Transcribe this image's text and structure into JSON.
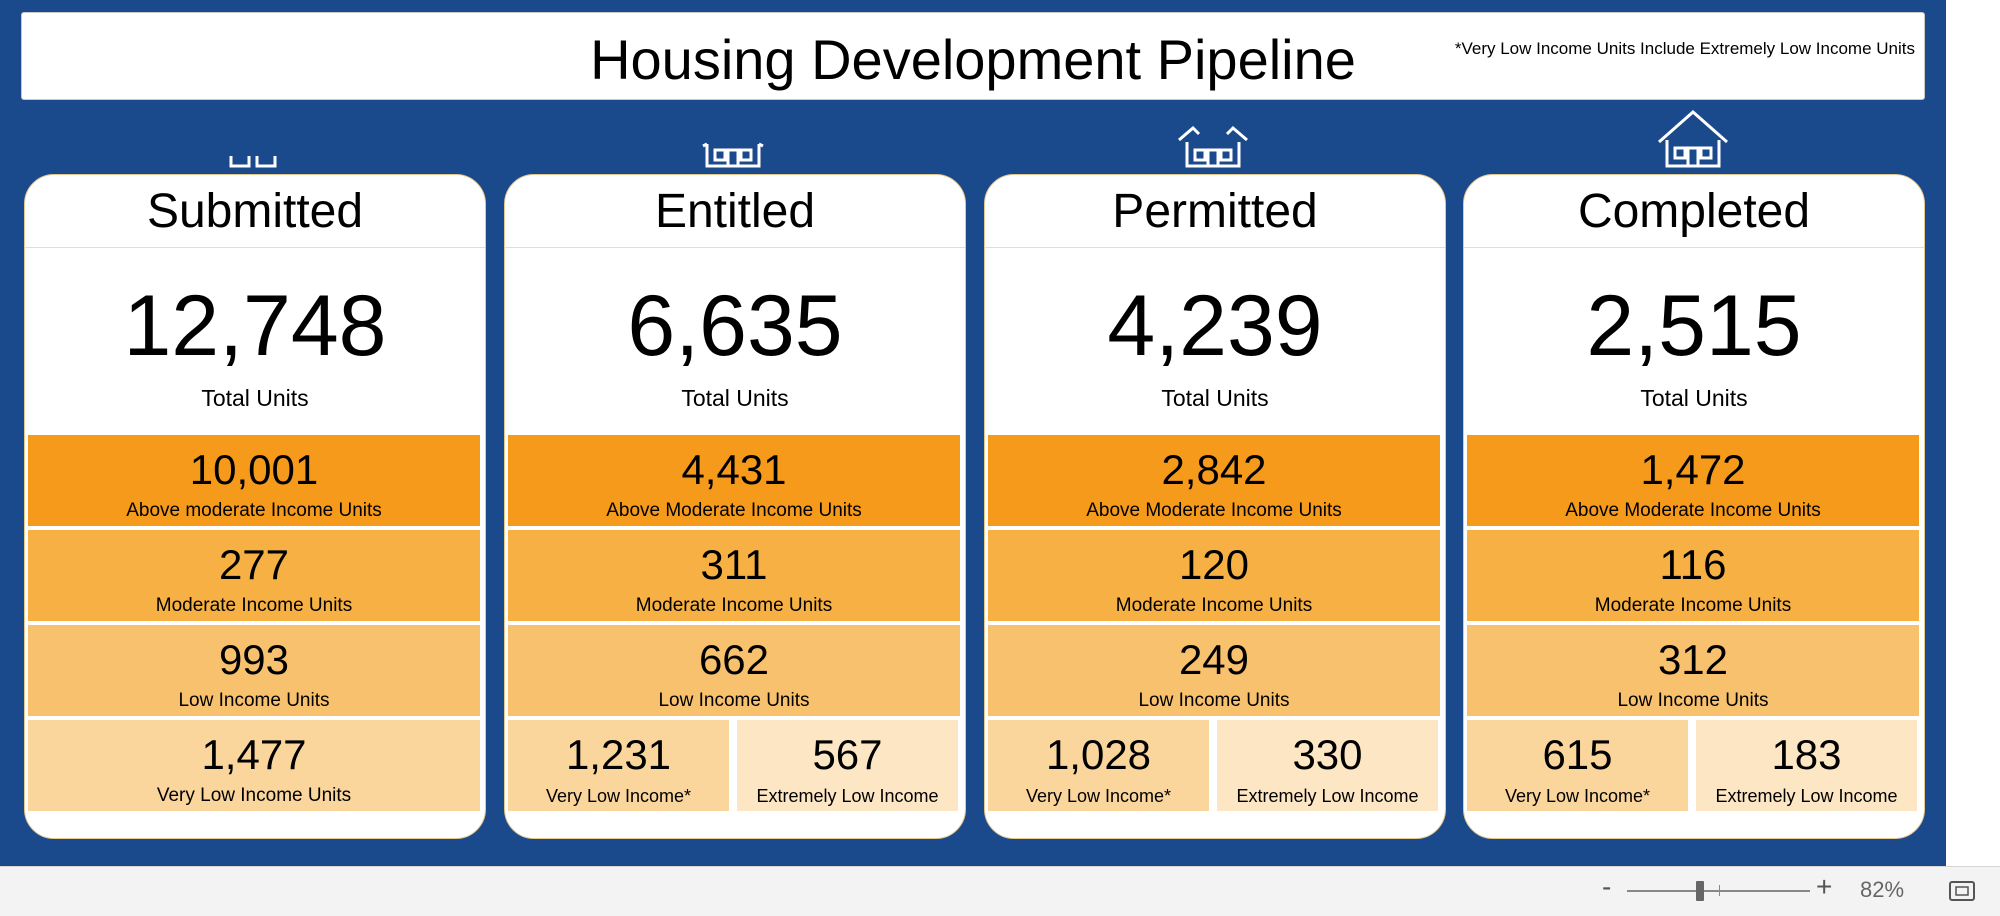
{
  "dashboard": {
    "title": "Housing Development Pipeline",
    "note": "*Very Low Income Units Include Extremely Low Income Units",
    "colors": {
      "background": "#1b4a8c",
      "above_moderate": "#f59a1b",
      "moderate": "#f6b043",
      "low": "#f8c16e",
      "very_low": "#fad59c",
      "extremely_low": "#fde6c3"
    },
    "stages": [
      {
        "name": "Submitted",
        "icon": "house-foundation-icon",
        "total": "12,748",
        "total_label": "Total Units",
        "above_moderate": {
          "value": "10,001",
          "label": "Above moderate Income Units"
        },
        "moderate": {
          "value": "277",
          "label": "Moderate Income Units"
        },
        "low": {
          "value": "993",
          "label": "Low Income Units"
        },
        "very_low": {
          "value": "1,477",
          "label": "Very Low Income Units"
        }
      },
      {
        "name": "Entitled",
        "icon": "house-walls-icon",
        "total": "6,635",
        "total_label": "Total Units",
        "above_moderate": {
          "value": "4,431",
          "label": "Above Moderate Income Units"
        },
        "moderate": {
          "value": "311",
          "label": "Moderate Income Units"
        },
        "low": {
          "value": "662",
          "label": "Low Income Units"
        },
        "very_low": {
          "value": "1,231",
          "label": "Very Low Income*"
        },
        "extremely_low": {
          "value": "567",
          "label": "Extremely Low Income"
        }
      },
      {
        "name": "Permitted",
        "icon": "house-partial-roof-icon",
        "total": "4,239",
        "total_label": "Total Units",
        "above_moderate": {
          "value": "2,842",
          "label": "Above Moderate Income Units"
        },
        "moderate": {
          "value": "120",
          "label": "Moderate Income Units"
        },
        "low": {
          "value": "249",
          "label": "Low Income Units"
        },
        "very_low": {
          "value": "1,028",
          "label": "Very Low Income*"
        },
        "extremely_low": {
          "value": "330",
          "label": "Extremely Low Income"
        }
      },
      {
        "name": "Completed",
        "icon": "house-complete-icon",
        "total": "2,515",
        "total_label": "Total Units",
        "above_moderate": {
          "value": "1,472",
          "label": "Above Moderate Income Units"
        },
        "moderate": {
          "value": "116",
          "label": "Moderate Income Units"
        },
        "low": {
          "value": "312",
          "label": "Low Income Units"
        },
        "very_low": {
          "value": "615",
          "label": "Very Low Income*"
        },
        "extremely_low": {
          "value": "183",
          "label": "Extremely Low Income"
        }
      }
    ]
  },
  "statusbar": {
    "zoom_out": "-",
    "zoom_in": "+",
    "zoom_level": "82%",
    "zoom_slider_value": 0.82
  }
}
